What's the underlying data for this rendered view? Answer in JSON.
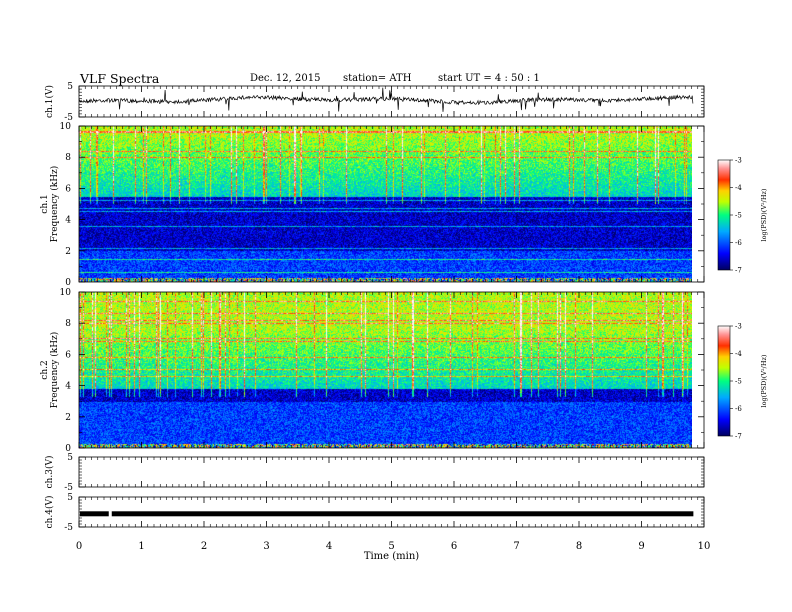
{
  "header": {
    "title": "VLF  Spectra",
    "date": "Dec. 12, 2015",
    "station": "station= ATH",
    "start": "start  UT  =   4  : 50 : 1"
  },
  "chart_data": [
    {
      "type": "line",
      "name": "ch1-voltage",
      "ylabel": "ch.1(V)",
      "ylim": [
        -5,
        5
      ],
      "yticks": [
        5,
        -5
      ],
      "xlim": [
        0,
        10
      ],
      "trace_level_V": 0.5,
      "trace_noise": "dense small spikes",
      "color": "#000000"
    },
    {
      "type": "heatmap",
      "name": "ch1-spectrogram",
      "ylabel": "ch.1\nFrequency  (kHz)",
      "ylim": [
        0,
        10
      ],
      "yticks": [
        0,
        2,
        4,
        6,
        8,
        10
      ],
      "xlim": [
        0,
        9.8
      ],
      "band_low_psd_kHz": [
        2,
        5.5
      ],
      "colorbar": {
        "label": "log(PSD)(V²/Hz)",
        "ticks": [
          -3,
          -4,
          -5,
          -6,
          -7
        ]
      }
    },
    {
      "type": "heatmap",
      "name": "ch2-spectrogram",
      "ylabel": "ch.2\nFrequency  (kHz)",
      "ylim": [
        0,
        10
      ],
      "yticks": [
        0,
        2,
        4,
        6,
        8,
        10
      ],
      "xlim": [
        0,
        9.8
      ],
      "band_low_psd_kHz": [
        3,
        3.8
      ],
      "colorbar": {
        "label": "log(PSD)(V²/Hz)",
        "ticks": [
          -3,
          -4,
          -5,
          -6,
          -7
        ]
      }
    },
    {
      "type": "line",
      "name": "ch3-voltage",
      "ylabel": "ch.3(V)",
      "ylim": [
        -5,
        5
      ],
      "yticks": [
        5,
        -5
      ],
      "xlim": [
        0,
        10
      ],
      "trace": "none"
    },
    {
      "type": "line",
      "name": "ch4-voltage",
      "ylabel": "ch.4(V)",
      "ylim": [
        -5,
        5
      ],
      "yticks": [
        5,
        -5
      ],
      "xlim": [
        0,
        10
      ],
      "trace_level_V": -0.6,
      "gap_at_min": 0.5
    }
  ],
  "xaxis": {
    "label": "Time  (min)",
    "ticks": [
      0,
      1,
      2,
      3,
      4,
      5,
      6,
      7,
      8,
      9,
      10
    ]
  }
}
